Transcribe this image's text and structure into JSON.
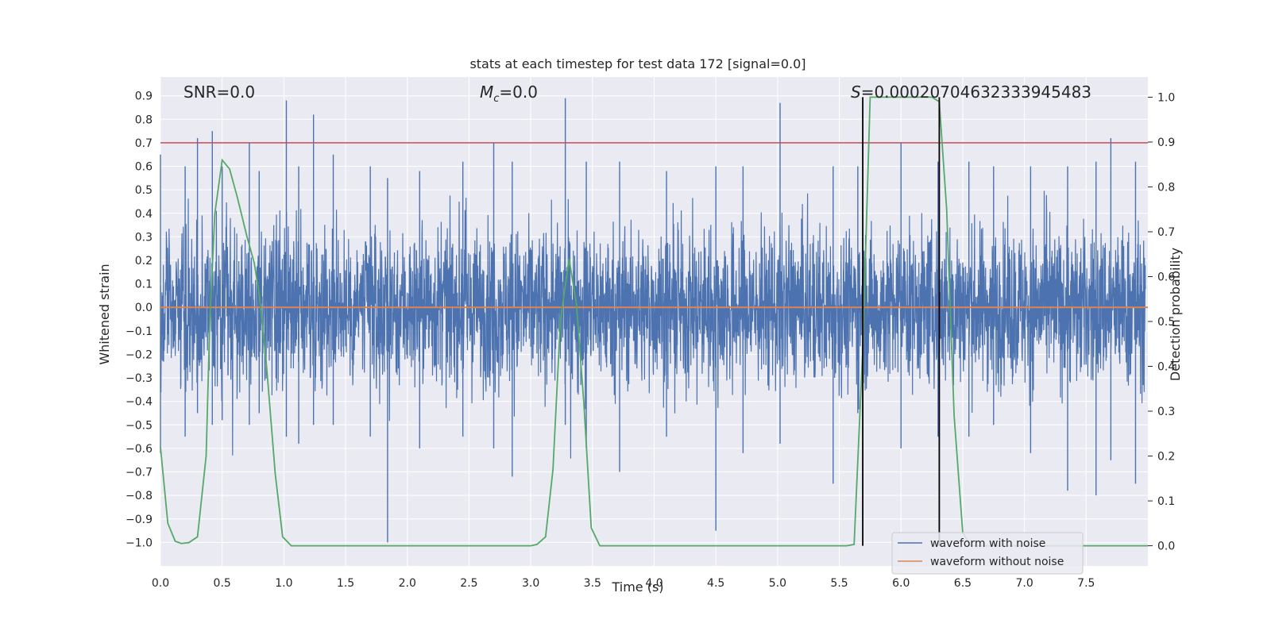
{
  "chart_data": {
    "type": "line",
    "title": "stats at each timestep for test data 172 [signal=0.0]",
    "xlabel": "Time (s)",
    "ylabel": "Whitened strain",
    "y2label": "Detection probability",
    "xlim": [
      0.0,
      8.0
    ],
    "ylim": [
      -1.1,
      0.98
    ],
    "y2lim": [
      -0.045,
      1.045
    ],
    "x_ticks": [
      "0.0",
      "0.5",
      "1.0",
      "1.5",
      "2.0",
      "2.5",
      "3.0",
      "3.5",
      "4.0",
      "4.5",
      "5.0",
      "5.5",
      "6.0",
      "6.5",
      "7.0",
      "7.5"
    ],
    "y_ticks": [
      "0.9",
      "0.8",
      "0.7",
      "0.6",
      "0.5",
      "0.4",
      "0.3",
      "0.2",
      "0.1",
      "0.0",
      "−0.1",
      "−0.2",
      "−0.3",
      "−0.4",
      "−0.5",
      "−0.6",
      "−0.7",
      "−0.8",
      "−0.9",
      "−1.0"
    ],
    "y2_ticks": [
      "1.0",
      "0.9",
      "0.8",
      "0.7",
      "0.6",
      "0.5",
      "0.4",
      "0.3",
      "0.2",
      "0.1",
      "0.0"
    ],
    "annotations": {
      "snr_label": "SNR=0.0",
      "mc_symbol": "M",
      "mc_subscript": "c",
      "mc_value": "=0.0",
      "s_symbol": "S",
      "s_value": "=0.00020704632333945483"
    },
    "threshold": {
      "y": 0.7,
      "color": "#c44e52"
    },
    "vertical_markers": [
      5.69,
      6.31
    ],
    "series": [
      {
        "name": "waveform with noise",
        "color": "#4c72b0",
        "description_of_envelope": "dense noise roughly within ±0.3 with spikes",
        "spikes": [
          [
            0.0,
            0.65,
            -0.62
          ],
          [
            0.2,
            0.6,
            -0.55
          ],
          [
            0.3,
            0.72,
            -0.45
          ],
          [
            0.42,
            0.75,
            -0.5
          ],
          [
            0.5,
            0.6,
            -0.48
          ],
          [
            0.72,
            0.7,
            -0.5
          ],
          [
            0.8,
            0.58,
            -0.45
          ],
          [
            1.02,
            0.88,
            -0.55
          ],
          [
            1.12,
            0.6,
            -0.58
          ],
          [
            1.24,
            0.82,
            -0.5
          ],
          [
            1.4,
            0.65,
            -0.5
          ],
          [
            1.7,
            0.6,
            -0.55
          ],
          [
            1.84,
            0.55,
            -1.0
          ],
          [
            2.1,
            0.58,
            -0.6
          ],
          [
            2.45,
            0.62,
            -0.55
          ],
          [
            2.7,
            0.7,
            -0.6
          ],
          [
            2.85,
            0.62,
            -0.72
          ],
          [
            3.28,
            0.89,
            -0.5
          ],
          [
            3.45,
            0.62,
            -0.6
          ],
          [
            3.72,
            0.62,
            -0.7
          ],
          [
            4.1,
            0.58,
            -0.55
          ],
          [
            4.5,
            0.6,
            -0.95
          ],
          [
            4.72,
            0.6,
            -0.62
          ],
          [
            5.02,
            0.87,
            -0.58
          ],
          [
            5.45,
            0.6,
            -0.75
          ],
          [
            5.65,
            0.6,
            -0.45
          ],
          [
            6.0,
            0.7,
            -0.6
          ],
          [
            6.3,
            0.62,
            -0.55
          ],
          [
            6.55,
            0.62,
            -0.55
          ],
          [
            6.75,
            0.6,
            -0.5
          ],
          [
            7.05,
            0.6,
            -0.62
          ],
          [
            7.35,
            0.6,
            -0.78
          ],
          [
            7.58,
            0.62,
            -0.8
          ],
          [
            7.7,
            0.72,
            -0.65
          ],
          [
            7.9,
            0.62,
            -0.75
          ]
        ]
      },
      {
        "name": "waveform without noise",
        "color": "#dd8452",
        "x": [
          0.0,
          8.0
        ],
        "y": [
          0.0,
          0.0
        ]
      },
      {
        "name": "detection probability",
        "color": "#55a868",
        "axis": "right",
        "x": [
          0.0,
          0.06,
          0.12,
          0.17,
          0.23,
          0.3,
          0.37,
          0.4,
          0.44,
          0.5,
          0.56,
          0.62,
          0.7,
          0.76,
          0.8,
          0.86,
          0.93,
          0.99,
          1.06,
          1.12,
          3.0,
          3.05,
          3.12,
          3.18,
          3.24,
          3.31,
          3.37,
          3.43,
          3.49,
          3.56,
          3.62,
          5.56,
          5.62,
          5.69,
          5.75,
          5.81,
          6.25,
          6.31,
          6.37,
          6.43,
          6.5,
          6.56,
          8.0
        ],
        "y": [
          0.22,
          0.05,
          0.01,
          0.005,
          0.007,
          0.02,
          0.2,
          0.5,
          0.74,
          0.86,
          0.84,
          0.78,
          0.69,
          0.63,
          0.56,
          0.4,
          0.16,
          0.02,
          0.0,
          0.0,
          0.0,
          0.003,
          0.02,
          0.17,
          0.5,
          0.64,
          0.54,
          0.32,
          0.04,
          0.0,
          0.0,
          0.0,
          0.003,
          0.44,
          1.0,
          1.0,
          1.0,
          0.99,
          0.75,
          0.29,
          0.03,
          0.0,
          0.0
        ]
      }
    ],
    "legend": {
      "position": "lower-right",
      "entries": [
        "waveform with noise",
        "waveform without noise"
      ]
    },
    "grid": true
  }
}
